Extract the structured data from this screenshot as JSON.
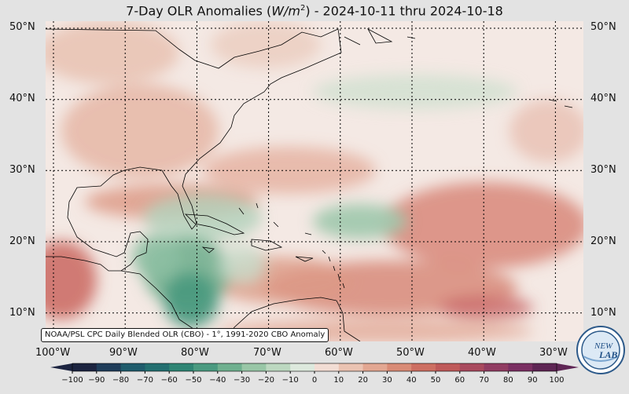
{
  "title": "7-Day OLR Anomalies (W/m²) - 2024-10-11 thru 2024-10-18",
  "title_parts": {
    "prefix": "7-Day OLR Anomalies (",
    "unit_var": "W/m",
    "unit_exp": "2",
    "suffix": ") - 2024-10-11 thru 2024-10-18"
  },
  "lat_labels": [
    "50°N",
    "40°N",
    "30°N",
    "20°N",
    "10°N"
  ],
  "lon_labels": [
    "100°W",
    "90°W",
    "80°W",
    "70°W",
    "60°W",
    "50°W",
    "40°W",
    "30°W"
  ],
  "caption": "NOAA/PSL CPC Daily Blended OLR (CBO) - 1°, 1991-2020 CBO Anomaly",
  "colorbar": {
    "ticks": [
      "−100",
      "−90",
      "−80",
      "−70",
      "−60",
      "−50",
      "−40",
      "−30",
      "−20",
      "−10",
      "0",
      "10",
      "20",
      "30",
      "40",
      "50",
      "60",
      "70",
      "80",
      "90",
      "100"
    ],
    "colors_negative": [
      "#1c2440",
      "#1f3d5a",
      "#1f5c6c",
      "#236f70",
      "#2f8574",
      "#4a9a80",
      "#6fb08f",
      "#98c6a6",
      "#bcd8c0",
      "#dde9dd"
    ],
    "colors_positive": [
      "#f2ddd4",
      "#ebc3b2",
      "#e3a792",
      "#d98b76",
      "#cd6f62",
      "#bf5a5a",
      "#a94a5e",
      "#913c62",
      "#7a2f62",
      "#5e2554"
    ]
  },
  "logo": {
    "text_top": "NEW",
    "text_bottom": "LAB"
  },
  "map_extent": {
    "lon_min": -101,
    "lon_max": -26,
    "lat_min": 6,
    "lat_max": 51
  },
  "colors": {
    "background": "#e3e3e3",
    "ocean_base": "#f3e7e2",
    "negative_anomaly": "#5aa584",
    "positive_anomaly": "#d98b76",
    "coast": "#000000",
    "grid": "#000000"
  }
}
